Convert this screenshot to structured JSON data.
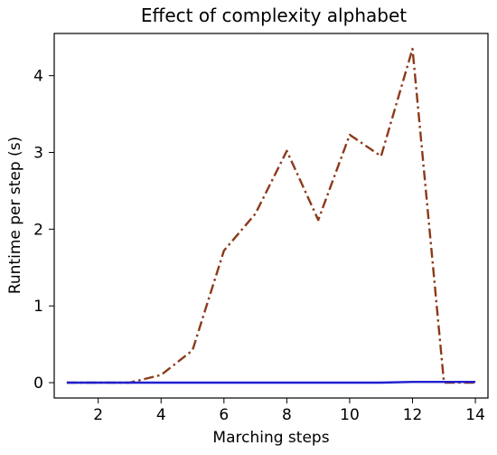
{
  "chart_data": {
    "type": "line",
    "title": "Effect of complexity alphabet",
    "xlabel": "Marching steps",
    "ylabel": "Runtime per step (s)",
    "xlim": [
      0.6,
      14.4
    ],
    "ylim": [
      -0.2,
      4.55
    ],
    "xticks": [
      2,
      4,
      6,
      8,
      10,
      12,
      14
    ],
    "yticks": [
      0,
      1,
      2,
      3,
      4
    ],
    "grid": false,
    "legend": "none",
    "series": [
      {
        "color": "#8b3a1a",
        "style": "dash-dot",
        "x": [
          1,
          2,
          3,
          4,
          5,
          6,
          7,
          8,
          9,
          10,
          11,
          12,
          13,
          14
        ],
        "y": [
          0.0,
          0.0,
          0.0,
          0.1,
          0.42,
          1.72,
          2.2,
          3.02,
          2.12,
          3.23,
          2.95,
          4.35,
          0.0,
          0.0
        ]
      },
      {
        "color": "#1f1fcf",
        "style": "solid",
        "x": [
          1,
          2,
          3,
          4,
          5,
          6,
          7,
          8,
          9,
          10,
          11,
          12,
          13,
          14
        ],
        "y": [
          0.0,
          0.0,
          0.0,
          0.0,
          0.0,
          0.0,
          0.0,
          0.0,
          0.0,
          0.0,
          0.0,
          0.01,
          0.01,
          0.01
        ]
      }
    ]
  }
}
